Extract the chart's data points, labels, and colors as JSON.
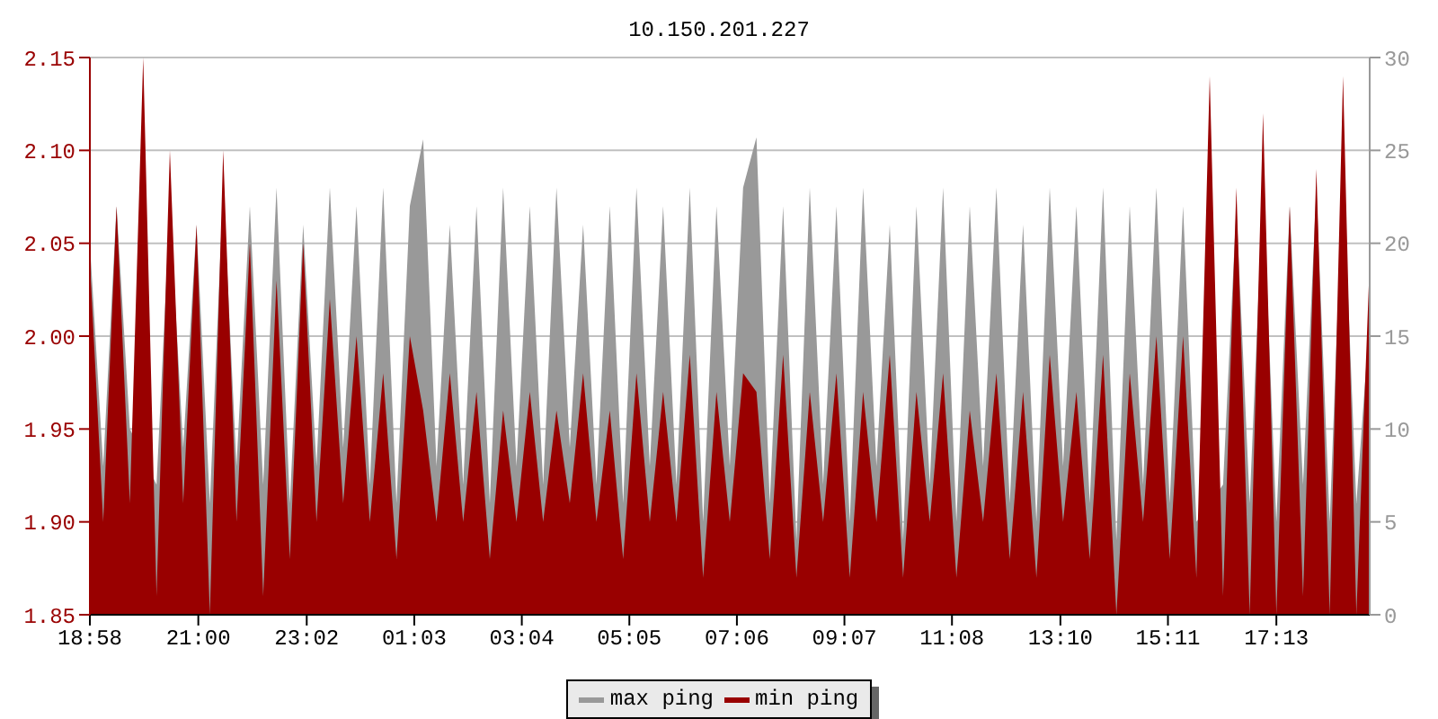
{
  "chart_data": {
    "type": "area",
    "title": "10.150.201.227",
    "x": [
      "--01-01T18:58",
      "--01-01T19:13",
      "--01-01T19:28",
      "--01-01T19:43",
      "--01-01T19:58",
      "--01-01T20:13",
      "--01-01T20:28",
      "--01-01T20:43",
      "--01-01T20:58",
      "--01-01T21:13",
      "--01-01T21:28",
      "--01-01T21:43",
      "--01-01T21:58",
      "--01-01T22:13",
      "--01-01T22:28",
      "--01-01T22:43",
      "--01-01T22:58",
      "--01-01T23:13",
      "--01-01T23:28",
      "--01-01T23:43",
      "--01-01T23:58",
      "--01-02T00:13",
      "--01-02T00:28",
      "--01-02T00:43",
      "--01-02T00:58",
      "--01-02T01:13",
      "--01-02T01:28",
      "--01-02T01:43",
      "--01-02T01:58",
      "--01-02T02:13",
      "--01-02T02:28",
      "--01-02T02:43",
      "--01-02T02:58",
      "--01-02T03:13",
      "--01-02T03:28",
      "--01-02T03:43",
      "--01-02T03:58",
      "--01-02T04:13",
      "--01-02T04:28",
      "--01-02T04:43",
      "--01-02T04:58",
      "--01-02T05:13",
      "--01-02T05:28",
      "--01-02T05:43",
      "--01-02T05:58",
      "--01-02T06:13",
      "--01-02T06:28",
      "--01-02T06:43",
      "--01-02T06:58",
      "--01-02T07:13",
      "--01-02T07:28",
      "--01-02T07:43",
      "--01-02T07:58",
      "--01-02T08:13",
      "--01-02T08:28",
      "--01-02T08:43",
      "--01-02T08:58",
      "--01-02T09:13",
      "--01-02T09:28",
      "--01-02T09:43",
      "--01-02T09:58",
      "--01-02T10:13",
      "--01-02T10:28",
      "--01-02T10:43",
      "--01-02T10:58",
      "--01-02T11:13",
      "--01-02T11:28",
      "--01-02T11:43",
      "--01-02T11:58",
      "--01-02T12:13",
      "--01-02T12:28",
      "--01-02T12:43",
      "--01-02T12:58",
      "--01-02T13:13",
      "--01-02T13:28",
      "--01-02T13:43",
      "--01-02T13:58",
      "--01-02T14:13",
      "--01-02T14:28",
      "--01-02T14:43",
      "--01-02T14:58",
      "--01-02T15:13",
      "--01-02T15:28",
      "--01-02T15:43",
      "--01-02T15:58",
      "--01-02T16:13",
      "--01-02T16:28",
      "--01-02T16:43",
      "--01-02T16:58",
      "--01-02T17:13",
      "--01-02T17:28",
      "--01-02T17:43",
      "--01-02T17:58",
      "--01-02T18:13",
      "--01-02T18:28",
      "--01-02T18:43",
      "--01-02T18:58"
    ],
    "series": [
      {
        "name": "max ping",
        "color": "#999999",
        "axis": "y2",
        "values": [
          20,
          8,
          22,
          10,
          null,
          7,
          22,
          9,
          21,
          6,
          23,
          8,
          22,
          7,
          23,
          6,
          21,
          8,
          23,
          9,
          22,
          7,
          23,
          6,
          22,
          25.6,
          8,
          21,
          7,
          22,
          6,
          23,
          8,
          22,
          7,
          23,
          9,
          21,
          7,
          22,
          6,
          23,
          8,
          22,
          7,
          23,
          5,
          22,
          8,
          23,
          25.7,
          6,
          22,
          4,
          23,
          7,
          22,
          5,
          23,
          8,
          21,
          4,
          22,
          7,
          23,
          5,
          22,
          8,
          23,
          6,
          21,
          5,
          23,
          8,
          22,
          6,
          23,
          4,
          22,
          7,
          23,
          6,
          22,
          5,
          null,
          7,
          22,
          6,
          23,
          5,
          22,
          7,
          23,
          5,
          24,
          6,
          16
        ]
      },
      {
        "name": "min ping",
        "color": "#990000",
        "axis": "y",
        "values": [
          2.04,
          1.9,
          2.07,
          1.91,
          2.15,
          1.86,
          2.1,
          1.91,
          2.06,
          1.85,
          2.1,
          1.9,
          2.05,
          1.86,
          2.03,
          1.88,
          2.05,
          1.9,
          2.02,
          1.91,
          2.0,
          1.9,
          1.98,
          1.88,
          2.0,
          1.96,
          1.9,
          1.98,
          1.9,
          1.97,
          1.88,
          1.96,
          1.9,
          1.97,
          1.9,
          1.96,
          1.91,
          1.98,
          1.9,
          1.96,
          1.88,
          1.98,
          1.9,
          1.97,
          1.9,
          1.99,
          1.87,
          1.97,
          1.9,
          1.98,
          1.97,
          1.88,
          1.99,
          1.87,
          1.97,
          1.9,
          1.98,
          1.87,
          1.97,
          1.9,
          1.99,
          1.87,
          1.97,
          1.9,
          1.98,
          1.87,
          1.96,
          1.9,
          1.98,
          1.88,
          1.97,
          1.87,
          1.99,
          1.9,
          1.97,
          1.88,
          1.99,
          1.85,
          1.98,
          1.9,
          2.0,
          1.88,
          2.0,
          1.87,
          2.14,
          1.86,
          2.08,
          1.85,
          2.12,
          1.85,
          2.07,
          1.86,
          2.09,
          1.85,
          2.14,
          1.85,
          2.04
        ]
      }
    ],
    "xlim": [
      "--01-01T18:58",
      "--01-02T18:58"
    ],
    "xticks": [
      {
        "value": "--01-01T18:58",
        "label": "18:58"
      },
      {
        "value": "--01-01T21:00",
        "label": "21:00"
      },
      {
        "value": "--01-01T23:02",
        "label": "23:02"
      },
      {
        "value": "--01-02T01:03",
        "label": "01:03"
      },
      {
        "value": "--01-02T03:04",
        "label": "03:04"
      },
      {
        "value": "--01-02T05:05",
        "label": "05:05"
      },
      {
        "value": "--01-02T07:06",
        "label": "07:06"
      },
      {
        "value": "--01-02T09:07",
        "label": "09:07"
      },
      {
        "value": "--01-02T11:08",
        "label": "11:08"
      },
      {
        "value": "--01-02T13:10",
        "label": "13:10"
      },
      {
        "value": "--01-02T15:11",
        "label": "15:11"
      },
      {
        "value": "--01-02T17:13",
        "label": "17:13"
      }
    ],
    "ylim": [
      1.85,
      2.15
    ],
    "yticks": [
      {
        "value": 1.85,
        "label": "1.85"
      },
      {
        "value": 1.9,
        "label": "1.90"
      },
      {
        "value": 1.95,
        "label": "1.95"
      },
      {
        "value": 2.0,
        "label": "2.00"
      },
      {
        "value": 2.05,
        "label": "2.05"
      },
      {
        "value": 2.1,
        "label": "2.10"
      },
      {
        "value": 2.15,
        "label": "2.15"
      }
    ],
    "y2lim": [
      0,
      30
    ],
    "y2ticks": [
      0,
      5,
      10,
      15,
      20,
      25,
      30
    ],
    "grid": "y",
    "legend": "bottom"
  }
}
